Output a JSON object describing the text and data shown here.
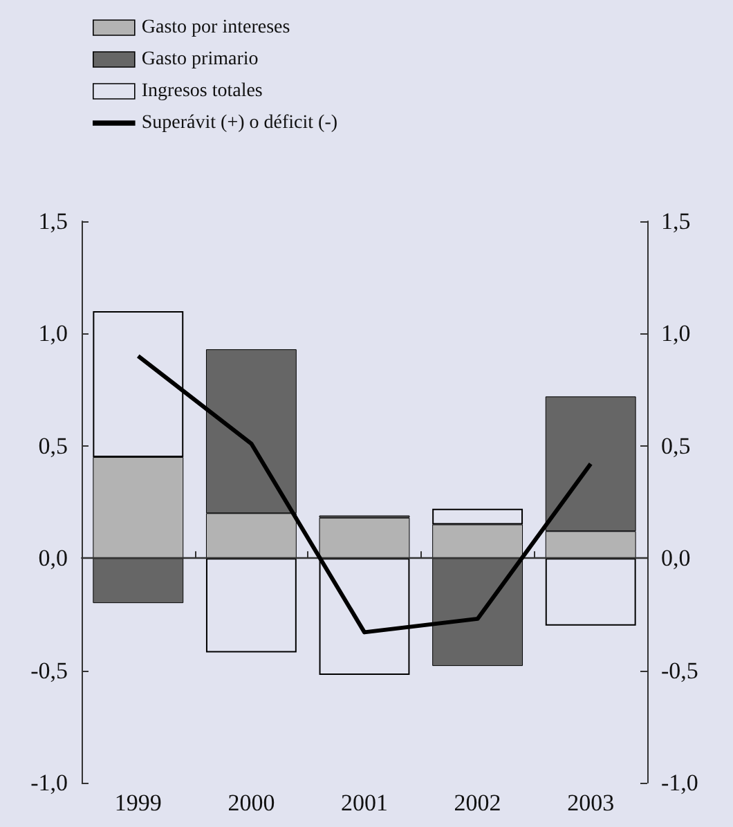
{
  "chart_data": {
    "type": "bar",
    "stacked": true,
    "categories": [
      "1999",
      "2000",
      "2001",
      "2002",
      "2003"
    ],
    "series": [
      {
        "name": "Gasto por intereses",
        "color": "#b3b3b3",
        "values": [
          0.45,
          0.2,
          0.18,
          0.15,
          0.12
        ]
      },
      {
        "name": "Gasto primario",
        "color": "#666666",
        "values": [
          -0.2,
          0.73,
          0.01,
          -0.48,
          0.6
        ]
      },
      {
        "name": "Ingresos totales",
        "color": "#e1e3f0",
        "values": [
          0.65,
          -0.42,
          -0.52,
          0.07,
          -0.3
        ]
      },
      {
        "name": "Superávit (+) o déficit (-)",
        "type": "line",
        "color": "#000000",
        "marker": "none",
        "values": [
          0.9,
          0.51,
          -0.33,
          -0.27,
          0.42
        ]
      }
    ],
    "ylim": [
      -1.0,
      1.5
    ],
    "yticks": [
      {
        "value": -1.0,
        "label": "-1,0"
      },
      {
        "value": -0.5,
        "label": "-0,5"
      },
      {
        "value": 0,
        "label": "0,0"
      },
      {
        "value": 0.5,
        "label": "0,5"
      },
      {
        "value": 1.0,
        "label": "1,0"
      },
      {
        "value": 1.5,
        "label": "1,5"
      }
    ],
    "y2lim": [
      -1.0,
      1.5
    ],
    "y2ticks": [
      {
        "value": -1.0,
        "label": "-1,0"
      },
      {
        "value": -0.5,
        "label": "-0,5"
      },
      {
        "value": 0,
        "label": "0,0"
      },
      {
        "value": 0.5,
        "label": "0,5"
      },
      {
        "value": 1.0,
        "label": "1,0"
      },
      {
        "value": 1.5,
        "label": "1,5"
      }
    ],
    "ref_lines": [
      {
        "axis": "y",
        "value": 0,
        "color": "#333333"
      }
    ],
    "grid": false,
    "legend": "top left"
  }
}
